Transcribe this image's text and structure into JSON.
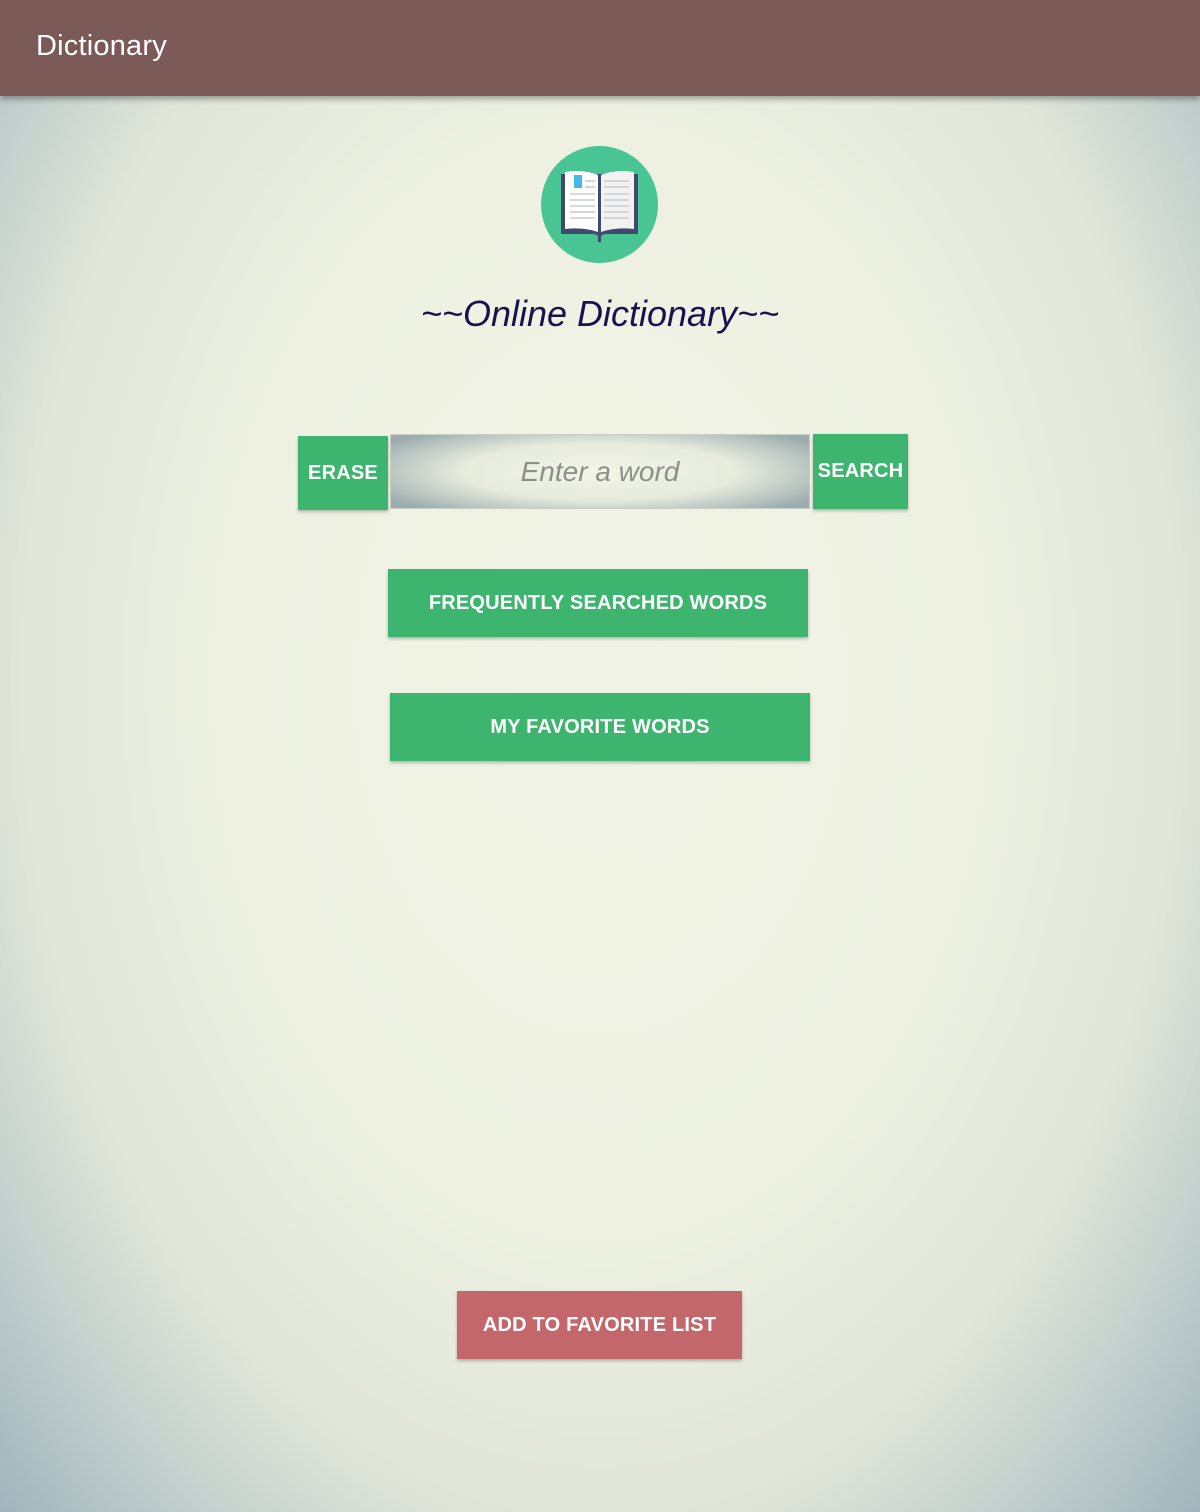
{
  "appbar": {
    "title": "Dictionary"
  },
  "header": {
    "headline": "~~Online Dictionary~~"
  },
  "search": {
    "erase_label": "ERASE",
    "placeholder": "Enter a word",
    "value": "",
    "search_label": "SEARCH"
  },
  "actions": {
    "frequent_label": "FREQUENTLY SEARCHED WORDS",
    "favorites_label": "MY FAVORITE WORDS",
    "add_favorite_label": "ADD TO FAVORITE LIST"
  },
  "icons": {
    "logo": "open-book-icon"
  },
  "colors": {
    "appbar": "#7b5957",
    "primary_button": "#3db56f",
    "accent_button": "#c4676a",
    "logo_circle": "#49c594",
    "headline_text": "#1a1150"
  }
}
